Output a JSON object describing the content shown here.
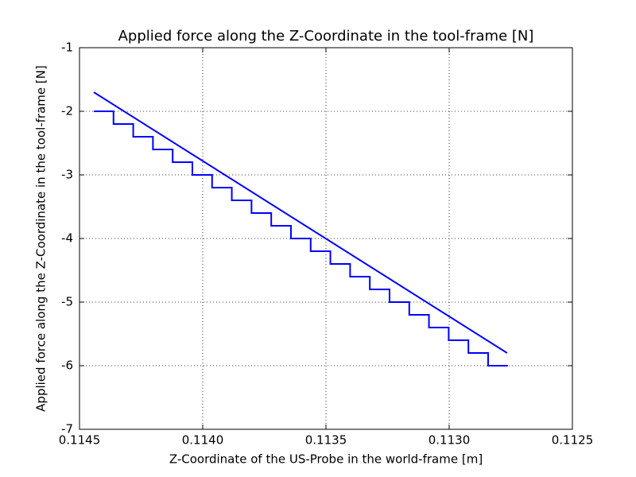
{
  "chart_data": {
    "type": "line",
    "title": "Applied force along the Z-Coordinate in the tool-frame [N]",
    "xlabel": "Z-Coordinate of the US-Probe in the world-frame [m]",
    "ylabel": "Applied force along the Z-Coordinate in the tool-frame [N]",
    "xlim": [
      0.1145,
      0.1125
    ],
    "xticks": [
      0.1145,
      {
        "value": 0.114,
        "label": "0.1140"
      },
      0.1135,
      {
        "value": 0.113,
        "label": "0.1130"
      },
      0.1125
    ],
    "ylim": [
      -7,
      -1
    ],
    "yticks": [
      -7,
      -6,
      -5,
      -4,
      -3,
      -2,
      -1
    ],
    "grid": true,
    "series": [
      {
        "color": "#0000ff",
        "x": [
          0.114442,
          0.114362,
          0.114362,
          0.114282,
          0.114282,
          0.114202,
          0.114202,
          0.114122,
          0.114122,
          0.114042,
          0.114042,
          0.113962,
          0.113962,
          0.113882,
          0.113882,
          0.113802,
          0.113802,
          0.113722,
          0.113722,
          0.113642,
          0.113642,
          0.113562,
          0.113562,
          0.113482,
          0.113482,
          0.113402,
          0.113402,
          0.113322,
          0.113322,
          0.113242,
          0.113242,
          0.113162,
          0.113162,
          0.113082,
          0.113082,
          0.113002,
          0.113002,
          0.112922,
          0.112922,
          0.112842,
          0.112842,
          0.112762
        ],
        "values": [
          -2.0,
          -2.0,
          -2.2,
          -2.2,
          -2.4,
          -2.4,
          -2.6,
          -2.6,
          -2.8,
          -2.8,
          -3.0,
          -3.0,
          -3.2,
          -3.2,
          -3.4,
          -3.4,
          -3.6,
          -3.6,
          -3.8,
          -3.8,
          -4.0,
          -4.0,
          -4.2,
          -4.2,
          -4.4,
          -4.4,
          -4.6,
          -4.6,
          -4.8,
          -4.8,
          -5.0,
          -5.0,
          -5.2,
          -5.2,
          -5.4,
          -5.4,
          -5.6,
          -5.6,
          -5.8,
          -5.8,
          -6.0,
          -6.0
        ]
      },
      {
        "color": "#0000ff",
        "x": [
          0.114442,
          0.112765
        ],
        "values": [
          -1.7,
          -5.8
        ]
      }
    ]
  }
}
